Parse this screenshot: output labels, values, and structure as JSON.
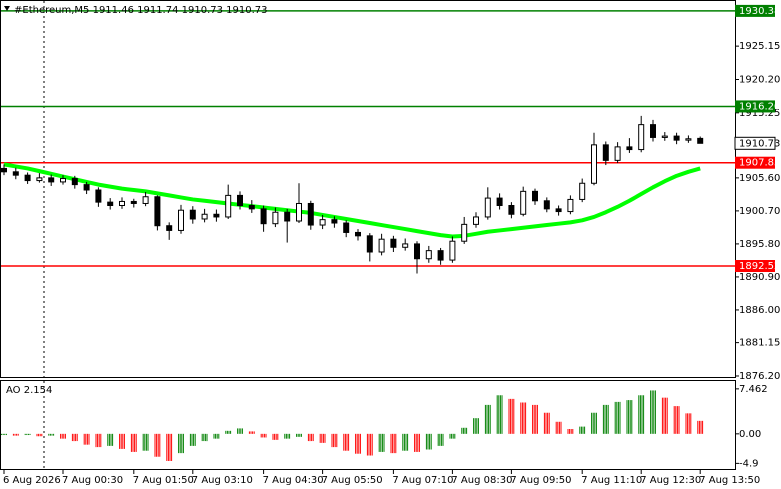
{
  "chart_data": [
    {
      "type": "candlestick",
      "title": "#Ethereum,M5  1911.46 1911.74 1910.73 1910.73",
      "categories": [
        "6 Aug 2026",
        null,
        null,
        null,
        null,
        "7 Aug 00:30",
        null,
        null,
        null,
        null,
        null,
        "7 Aug 01:50",
        null,
        null,
        null,
        null,
        "7 Aug 03:10",
        null,
        null,
        null,
        null,
        null,
        "7 Aug 04:30",
        null,
        null,
        null,
        null,
        "7 Aug 05:50",
        null,
        null,
        null,
        null,
        null,
        "7 Aug 07:10",
        null,
        null,
        null,
        null,
        "7 Aug 08:30",
        null,
        null,
        null,
        null,
        "7 Aug 09:50",
        null,
        null,
        null,
        null,
        null,
        "7 Aug 11:10",
        null,
        null,
        null,
        null,
        "7 Aug 12:30",
        null,
        null,
        null,
        null,
        "7 Aug 13:50"
      ],
      "candles": [
        [
          1907.0,
          1907.6,
          1906.0,
          1906.5
        ],
        [
          1906.5,
          1907.1,
          1905.4,
          1906.0
        ],
        [
          1906.0,
          1906.4,
          1904.7,
          1905.2
        ],
        [
          1905.2,
          1906.3,
          1904.9,
          1905.6
        ],
        [
          1905.6,
          1906.1,
          1904.4,
          1905.0
        ],
        [
          1905.0,
          1906.0,
          1904.6,
          1905.5
        ],
        [
          1905.5,
          1905.9,
          1904.0,
          1904.6
        ],
        [
          1904.6,
          1905.0,
          1903.2,
          1903.8
        ],
        [
          1903.8,
          1904.2,
          1901.3,
          1902.0
        ],
        [
          1902.0,
          1902.6,
          1900.9,
          1901.5
        ],
        [
          1901.5,
          1902.7,
          1901.0,
          1902.1
        ],
        [
          1902.1,
          1902.5,
          1901.2,
          1901.8
        ],
        [
          1901.8,
          1903.5,
          1901.4,
          1902.8
        ],
        [
          1902.8,
          1903.0,
          1897.8,
          1898.5
        ],
        [
          1898.5,
          1899.0,
          1896.4,
          1897.8
        ],
        [
          1897.8,
          1901.6,
          1897.3,
          1900.8
        ],
        [
          1900.8,
          1901.4,
          1898.8,
          1899.5
        ],
        [
          1899.5,
          1901.0,
          1899.0,
          1900.2
        ],
        [
          1900.2,
          1900.9,
          1899.1,
          1899.8
        ],
        [
          1899.8,
          1904.6,
          1899.5,
          1903.0
        ],
        [
          1903.0,
          1903.6,
          1900.9,
          1901.5
        ],
        [
          1901.5,
          1902.3,
          1900.4,
          1901.0
        ],
        [
          1901.0,
          1901.5,
          1897.6,
          1898.8
        ],
        [
          1898.8,
          1901.2,
          1898.3,
          1900.5
        ],
        [
          1900.5,
          1901.0,
          1896.0,
          1899.2
        ],
        [
          1899.2,
          1904.8,
          1898.9,
          1901.8
        ],
        [
          1901.8,
          1902.2,
          1897.9,
          1898.6
        ],
        [
          1898.6,
          1900.1,
          1898.0,
          1899.4
        ],
        [
          1899.4,
          1899.9,
          1898.2,
          1898.9
        ],
        [
          1898.9,
          1899.3,
          1896.8,
          1897.5
        ],
        [
          1897.5,
          1898.0,
          1896.3,
          1897.0
        ],
        [
          1897.0,
          1897.4,
          1893.2,
          1894.6
        ],
        [
          1894.6,
          1897.3,
          1894.1,
          1896.5
        ],
        [
          1896.5,
          1897.0,
          1894.6,
          1895.3
        ],
        [
          1895.3,
          1896.6,
          1894.8,
          1895.8
        ],
        [
          1895.8,
          1896.2,
          1891.4,
          1893.6
        ],
        [
          1893.6,
          1895.5,
          1893.0,
          1894.8
        ],
        [
          1894.8,
          1895.2,
          1892.7,
          1893.4
        ],
        [
          1893.4,
          1896.9,
          1893.0,
          1896.2
        ],
        [
          1896.2,
          1899.8,
          1895.8,
          1898.7
        ],
        [
          1898.7,
          1900.5,
          1898.2,
          1899.8
        ],
        [
          1899.8,
          1904.2,
          1899.4,
          1902.6
        ],
        [
          1902.6,
          1903.3,
          1900.9,
          1901.5
        ],
        [
          1901.5,
          1902.0,
          1899.6,
          1900.2
        ],
        [
          1900.2,
          1904.3,
          1899.9,
          1903.6
        ],
        [
          1903.6,
          1904.0,
          1901.6,
          1902.2
        ],
        [
          1902.2,
          1902.7,
          1900.5,
          1901.0
        ],
        [
          1901.0,
          1901.5,
          1900.0,
          1900.6
        ],
        [
          1900.6,
          1903.0,
          1900.2,
          1902.4
        ],
        [
          1902.4,
          1905.5,
          1902.0,
          1904.8
        ],
        [
          1904.8,
          1912.3,
          1904.5,
          1910.5
        ],
        [
          1910.5,
          1911.0,
          1907.5,
          1908.2
        ],
        [
          1908.2,
          1910.9,
          1907.8,
          1910.2
        ],
        [
          1910.2,
          1911.5,
          1909.3,
          1909.8
        ],
        [
          1909.8,
          1914.8,
          1909.4,
          1913.5
        ],
        [
          1913.5,
          1914.2,
          1911.0,
          1911.6
        ],
        [
          1911.6,
          1912.4,
          1911.1,
          1911.8
        ],
        [
          1911.8,
          1912.3,
          1910.6,
          1911.2
        ],
        [
          1911.2,
          1911.9,
          1910.8,
          1911.4
        ],
        [
          1911.46,
          1911.74,
          1910.73,
          1910.73
        ]
      ],
      "moving_average": {
        "color": "#00ff00",
        "values": [
          1907.6,
          1907.3,
          1907.0,
          1906.6,
          1906.2,
          1905.8,
          1905.4,
          1905.0,
          1904.6,
          1904.3,
          1904.0,
          1903.8,
          1903.6,
          1903.3,
          1903.0,
          1902.7,
          1902.4,
          1902.2,
          1902.0,
          1901.8,
          1901.6,
          1901.4,
          1901.2,
          1901.0,
          1900.8,
          1900.6,
          1900.4,
          1900.1,
          1899.8,
          1899.5,
          1899.2,
          1898.9,
          1898.6,
          1898.3,
          1898.0,
          1897.7,
          1897.4,
          1897.1,
          1896.9,
          1897.0,
          1897.3,
          1897.6,
          1897.8,
          1898.0,
          1898.2,
          1898.4,
          1898.6,
          1898.8,
          1899.0,
          1899.3,
          1899.8,
          1900.5,
          1901.3,
          1902.2,
          1903.2,
          1904.2,
          1905.1,
          1905.9,
          1906.5,
          1907.0
        ]
      },
      "levels": [
        {
          "value": 1930.38,
          "color": "#008000"
        },
        {
          "value": 1916.2,
          "label": "1916.20",
          "color": "#008000"
        },
        {
          "value": 1907.85,
          "color": "#ff0000"
        },
        {
          "value": 1892.52,
          "color": "#ff0000"
        }
      ],
      "last_price": 1910.73,
      "ylim": [
        1875.9,
        1931.7
      ],
      "yticks": [
        1925.15,
        {
          "value": 1920.2,
          "label": "1920.20"
        },
        1915.25,
        {
          "value": 1905.6,
          "label": "1905.60"
        },
        {
          "value": 1900.7,
          "label": "1900.70"
        },
        {
          "value": 1895.8,
          "label": "1895.80"
        },
        {
          "value": 1890.9,
          "label": "1890.90"
        },
        {
          "value": 1886,
          "label": "1886.00"
        },
        1881.15,
        {
          "value": 1876.2,
          "label": "1876.20"
        }
      ]
    },
    {
      "type": "bar",
      "title": "AO 2.154",
      "values": [
        -0.2,
        -0.3,
        -0.2,
        -0.4,
        -0.3,
        -0.8,
        -1.2,
        -1.8,
        -2.2,
        -2.0,
        -2.5,
        -3.0,
        -2.8,
        -3.8,
        -4.5,
        -3.2,
        -2.0,
        -1.2,
        -0.8,
        0.5,
        0.9,
        0.4,
        -0.6,
        -1.0,
        -0.8,
        -0.5,
        -1.2,
        -1.5,
        -2.2,
        -2.8,
        -3.3,
        -3.6,
        -3.0,
        -3.2,
        -2.8,
        -3.0,
        -2.6,
        -2.0,
        -0.8,
        1.0,
        2.6,
        4.8,
        6.4,
        5.8,
        5.2,
        4.8,
        3.5,
        2.0,
        0.8,
        1.2,
        3.5,
        4.8,
        5.3,
        5.6,
        6.4,
        7.2,
        6.0,
        4.6,
        3.4,
        2.154
      ],
      "up_color": "#008000",
      "down_color": "#ff0000",
      "ylim": [
        -6.0,
        8.6
      ],
      "yticks": [
        7.462,
        {
          "value": 0,
          "label": "0.00"
        },
        -4.9
      ]
    }
  ]
}
